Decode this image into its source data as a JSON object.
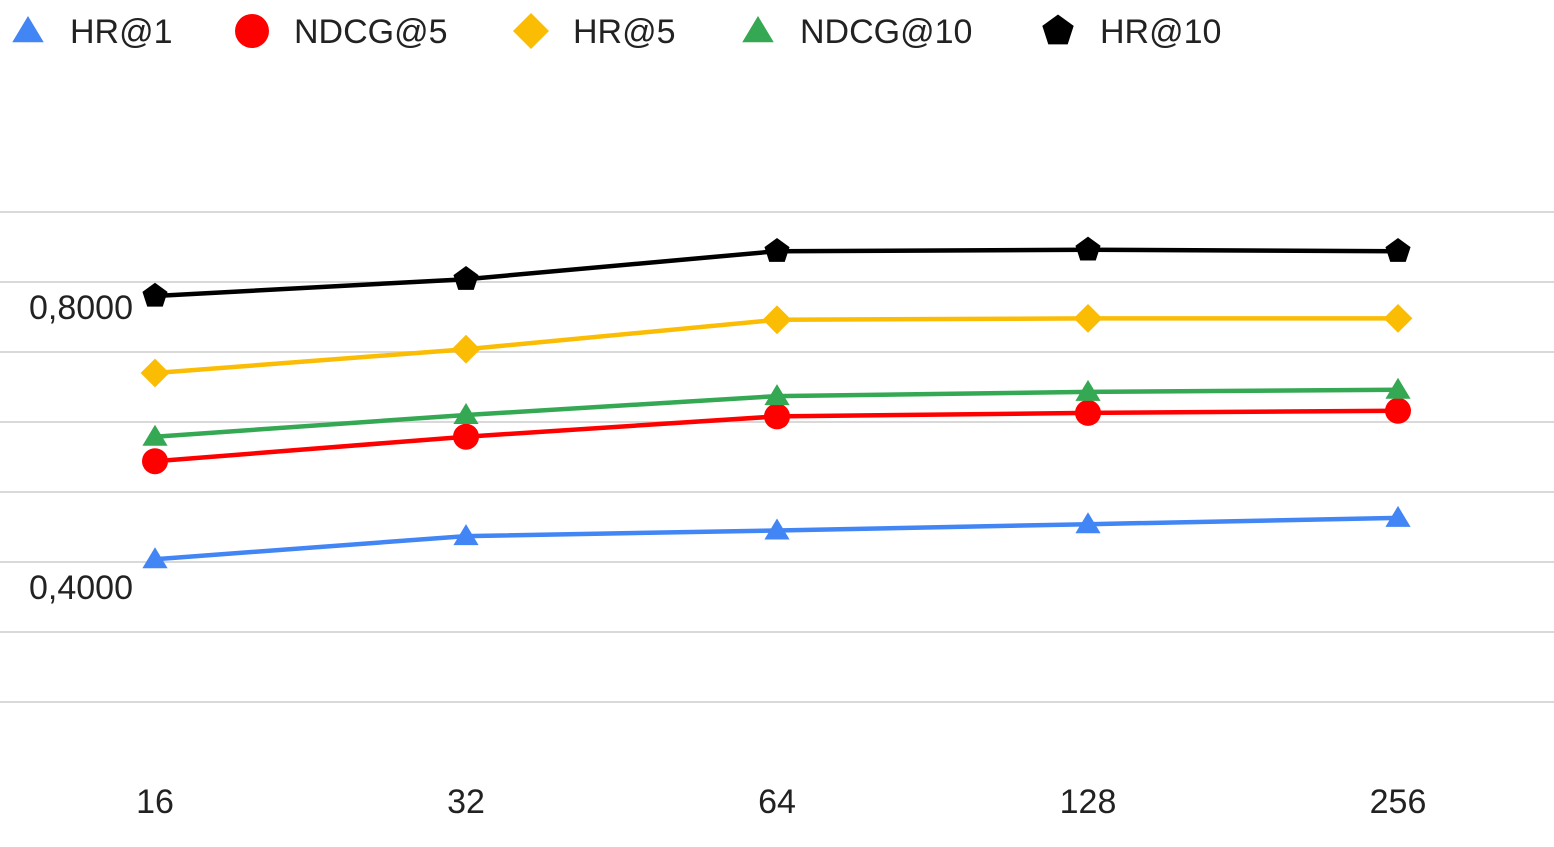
{
  "chart_data": {
    "type": "line",
    "title": "",
    "xlabel": "",
    "ylabel": "",
    "categories": [
      "16",
      "32",
      "64",
      "128",
      "256"
    ],
    "y_tick_labels": [
      "0,4000",
      "0,8000"
    ],
    "y_tick_values": [
      0.4,
      0.8
    ],
    "ylim": [
      0.2,
      0.9
    ],
    "grid": true,
    "legend_position": "top-left",
    "series": [
      {
        "name": "HR@1",
        "color": "#4285F4",
        "marker": "triangle",
        "values": [
          0.404,
          0.437,
          0.445,
          0.454,
          0.463
        ]
      },
      {
        "name": "NDCG@5",
        "color": "#FF0000",
        "marker": "circle",
        "values": [
          0.544,
          0.579,
          0.608,
          0.613,
          0.616
        ]
      },
      {
        "name": "HR@5",
        "color": "#FBBC04",
        "marker": "diamond",
        "values": [
          0.67,
          0.704,
          0.746,
          0.748,
          0.748
        ]
      },
      {
        "name": "NDCG@10",
        "color": "#34A853",
        "marker": "triangle",
        "values": [
          0.579,
          0.61,
          0.637,
          0.643,
          0.646
        ]
      },
      {
        "name": "HR@10",
        "color": "#000000",
        "marker": "pentagon",
        "values": [
          0.78,
          0.804,
          0.844,
          0.846,
          0.844
        ]
      }
    ]
  }
}
